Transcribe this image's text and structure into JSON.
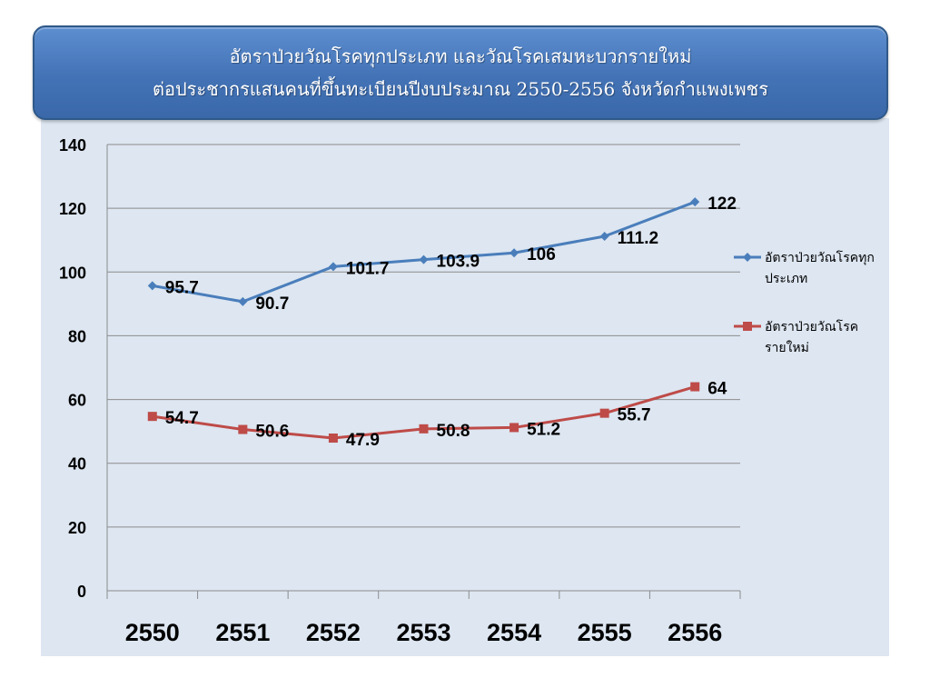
{
  "chart_data": {
    "type": "line",
    "title_lines": [
      "อัตราป่วยวัณโรคทุกประเภท และวัณโรคเสมหะบวกรายใหม่",
      "ต่อประชากรแสนคนที่ขึ้นทะเบียนปีงบประมาณ 2550-2556 จังหวัดกำแพงเพชร"
    ],
    "categories": [
      "2550",
      "2551",
      "2552",
      "2553",
      "2554",
      "2555",
      "2556"
    ],
    "series": [
      {
        "name_lines": [
          "อัตราป่วยวัณโรคทุก",
          "ประเภท"
        ],
        "values": [
          95.7,
          90.7,
          101.7,
          103.9,
          106,
          111.2,
          122
        ],
        "labels": [
          "95.7",
          "90.7",
          "101.7",
          "103.9",
          "106",
          "111.2",
          "122"
        ],
        "color": "#4a7ebb",
        "marker": "diamond"
      },
      {
        "name_lines": [
          "อัตราป่วยวัณโรค",
          "รายใหม่"
        ],
        "values": [
          54.7,
          50.6,
          47.9,
          50.8,
          51.2,
          55.7,
          64
        ],
        "labels": [
          "54.7",
          "50.6",
          "47.9",
          "50.8",
          "51.2",
          "55.7",
          "64"
        ],
        "color": "#be4b48",
        "marker": "square"
      }
    ],
    "y_ticks": [
      "0",
      "20",
      "40",
      "60",
      "80",
      "100",
      "120",
      "140"
    ],
    "ylim": [
      0,
      140
    ],
    "grid": true,
    "legend_position": "right"
  }
}
